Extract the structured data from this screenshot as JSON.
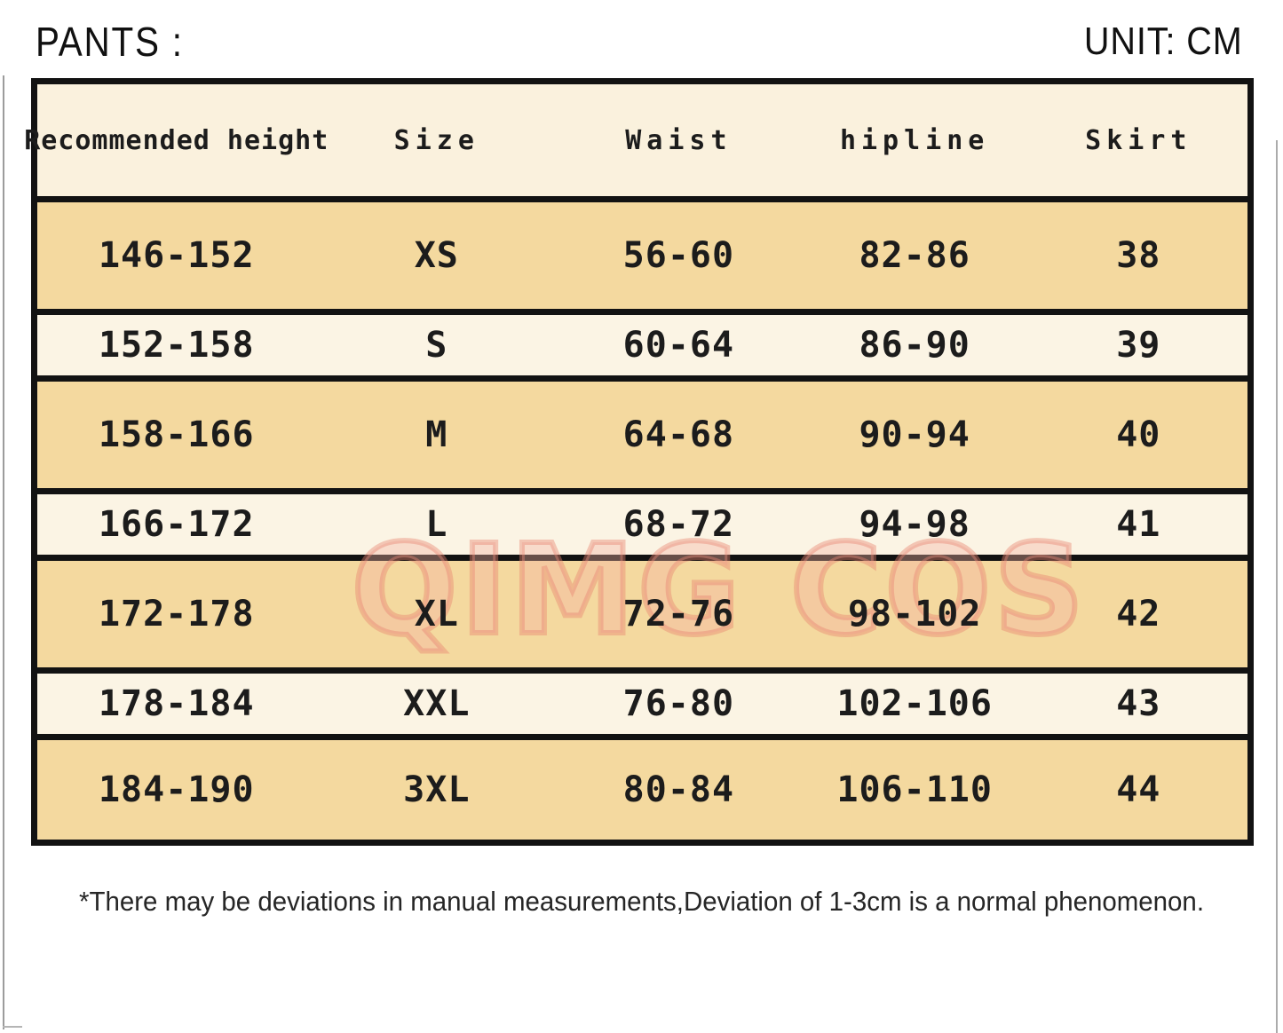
{
  "page": {
    "title": "PANTS :",
    "unit_label": "UNIT: CM",
    "watermark": "QIMG COS",
    "footnote": "*There may be deviations in manual measurements,Deviation of 1-3cm is a normal phenomenon."
  },
  "colors": {
    "row_tan": "#f4d99f",
    "row_cream": "#fbf4e4",
    "header_bg": "#faf1dd",
    "table_border": "#121212",
    "watermark_pink": "#ef9484",
    "text": "#1c1c1c"
  },
  "table": {
    "unit": "CM",
    "headers": [
      "Recommended height",
      "Size",
      "Waist",
      "hipline",
      "Skirt"
    ],
    "rows": [
      [
        "146-152",
        "XS",
        "56-60",
        "82-86",
        "38"
      ],
      [
        "152-158",
        "S",
        "60-64",
        "86-90",
        "39"
      ],
      [
        "158-166",
        "M",
        "64-68",
        "90-94",
        "40"
      ],
      [
        "166-172",
        "L",
        "68-72",
        "94-98",
        "41"
      ],
      [
        "172-178",
        "XL",
        "72-76",
        "98-102",
        "42"
      ],
      [
        "178-184",
        "XXL",
        "76-80",
        "102-106",
        "43"
      ],
      [
        "184-190",
        "3XL",
        "80-84",
        "106-110",
        "44"
      ]
    ]
  }
}
